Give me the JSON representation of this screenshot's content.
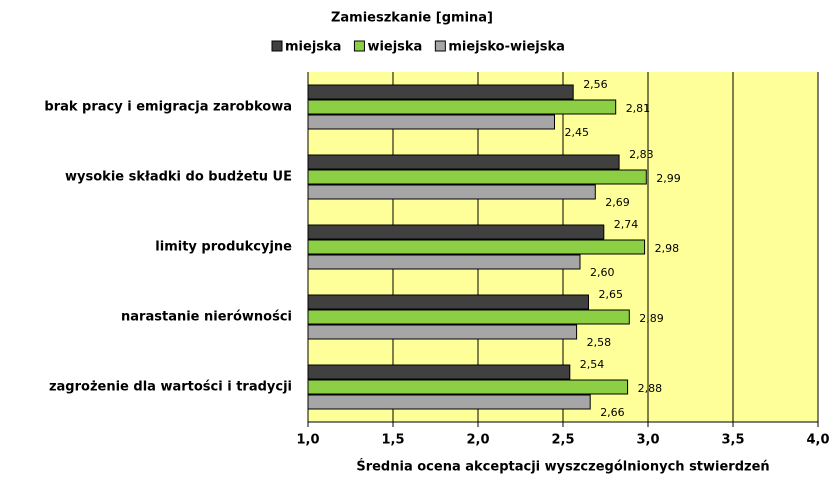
{
  "chart_data": {
    "type": "hbar",
    "title": "Zamieszkanie [gmina]",
    "x_label": "Średnia ocena akceptacji  wyszczególnionych stwierdzeń",
    "categories": [
      "brak pracy i emigracja zarobkowa",
      "wysokie składki do budżetu UE",
      "limity produkcyjne",
      "narastanie nierówności",
      "zagrożenie dla wartości i tradycji"
    ],
    "series": [
      {
        "name": "miejska",
        "color": "#404040",
        "values": [
          2.56,
          2.83,
          2.74,
          2.65,
          2.54
        ],
        "value_labels": [
          "2,56",
          "2,83",
          "2,74",
          "2,65",
          "2,54"
        ]
      },
      {
        "name": "wiejska",
        "color": "#8ccf45",
        "values": [
          2.81,
          2.99,
          2.98,
          2.89,
          2.88
        ],
        "value_labels": [
          "2,81",
          "2,99",
          "2,98",
          "2,89",
          "2,88"
        ]
      },
      {
        "name": "miejsko-wiejska",
        "color": "#a6a6a6",
        "values": [
          2.45,
          2.69,
          2.6,
          2.58,
          2.66
        ],
        "value_labels": [
          "2,45",
          "2,69",
          "2,60",
          "2,58",
          "2,66"
        ]
      }
    ],
    "xlim": [
      1.0,
      4.0
    ],
    "xticks": [
      {
        "value": 1.0,
        "label": "1,0"
      },
      {
        "value": 1.5,
        "label": "1,5"
      },
      {
        "value": 2.0,
        "label": "2,0"
      },
      {
        "value": 2.5,
        "label": "2,5"
      },
      {
        "value": 3.0,
        "label": "3,0"
      },
      {
        "value": 3.5,
        "label": "3,5"
      },
      {
        "value": 4.0,
        "label": "4,0"
      }
    ],
    "grid": true,
    "legend": "top"
  }
}
